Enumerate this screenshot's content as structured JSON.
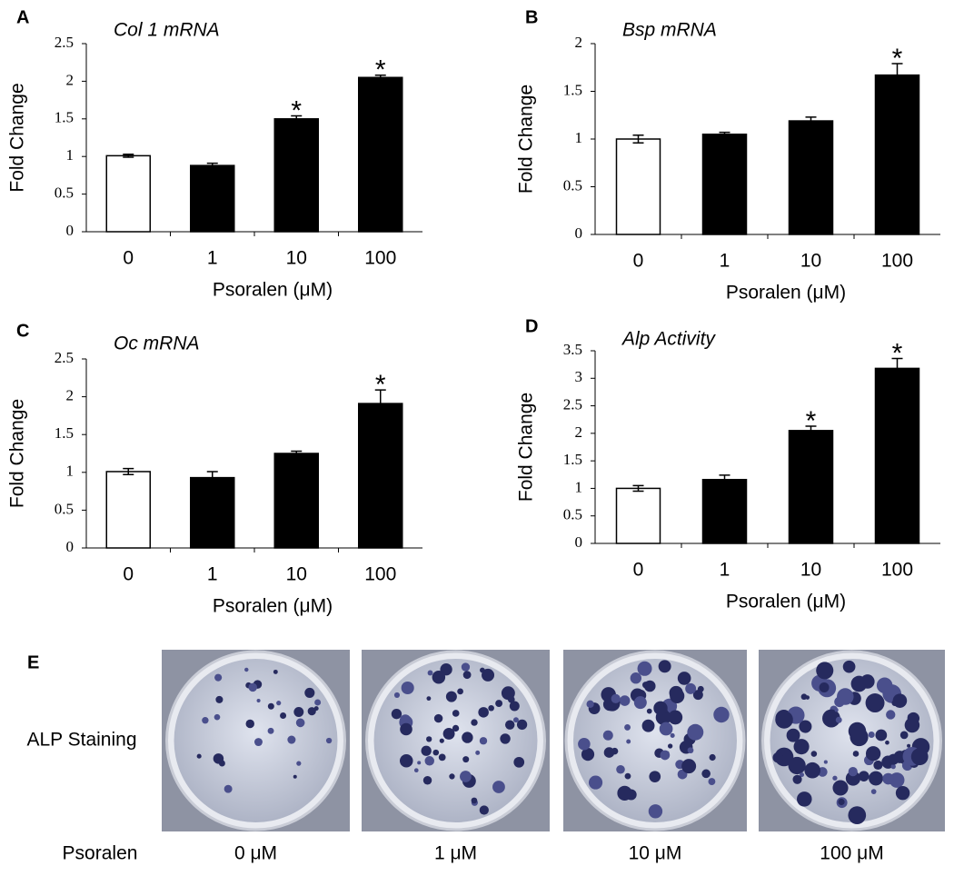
{
  "chart_data": [
    {
      "type": "bar",
      "panel": "A",
      "title": "Col 1 mRNA",
      "x_label": "Psoralen (μM)",
      "y_label": "Fold Change",
      "categories": [
        "0",
        "1",
        "10",
        "100"
      ],
      "values": [
        1.01,
        0.88,
        1.5,
        2.05
      ],
      "errors": [
        0.02,
        0.03,
        0.04,
        0.03
      ],
      "colors": [
        "#ffffff",
        "#000000",
        "#000000",
        "#000000"
      ],
      "significance": [
        null,
        null,
        "*",
        "*"
      ],
      "ylim": [
        0,
        2.5
      ],
      "yticks": [
        0,
        0.5,
        1,
        1.5,
        2,
        2.5
      ]
    },
    {
      "type": "bar",
      "panel": "B",
      "title": "Bsp mRNA",
      "x_label": "Psoralen (μM)",
      "y_label": "Fold Change",
      "categories": [
        "0",
        "1",
        "10",
        "100"
      ],
      "values": [
        1.0,
        1.05,
        1.19,
        1.67
      ],
      "errors": [
        0.04,
        0.02,
        0.04,
        0.12
      ],
      "colors": [
        "#ffffff",
        "#000000",
        "#000000",
        "#000000"
      ],
      "significance": [
        null,
        null,
        null,
        "*"
      ],
      "ylim": [
        0,
        2
      ],
      "yticks": [
        0,
        0.5,
        1,
        1.5,
        2
      ]
    },
    {
      "type": "bar",
      "panel": "C",
      "title": "Oc mRNA",
      "x_label": "Psoralen (μM)",
      "y_label": "Fold Change",
      "categories": [
        "0",
        "1",
        "10",
        "100"
      ],
      "values": [
        1.01,
        0.93,
        1.25,
        1.91
      ],
      "errors": [
        0.04,
        0.08,
        0.03,
        0.18
      ],
      "colors": [
        "#ffffff",
        "#000000",
        "#000000",
        "#000000"
      ],
      "significance": [
        null,
        null,
        null,
        "*"
      ],
      "ylim": [
        0,
        2.5
      ],
      "yticks": [
        0,
        0.5,
        1,
        1.5,
        2,
        2.5
      ]
    },
    {
      "type": "bar",
      "panel": "D",
      "title": "Alp Activity",
      "x_label": "Psoralen (μM)",
      "y_label": "Fold Change",
      "categories": [
        "0",
        "1",
        "10",
        "100"
      ],
      "values": [
        1.0,
        1.16,
        2.05,
        3.18
      ],
      "errors": [
        0.05,
        0.08,
        0.08,
        0.18
      ],
      "colors": [
        "#ffffff",
        "#000000",
        "#000000",
        "#000000"
      ],
      "significance": [
        null,
        null,
        "*",
        "*"
      ],
      "ylim": [
        0,
        3.5
      ],
      "yticks": [
        0,
        0.5,
        1,
        1.5,
        2,
        2.5,
        3,
        3.5
      ]
    }
  ],
  "staining": {
    "panel": "E",
    "row_label": "ALP Staining",
    "treatment_label": "Psoralen",
    "doses": [
      "0 μM",
      "1 μM",
      "10 μM",
      "100 μM"
    ]
  }
}
